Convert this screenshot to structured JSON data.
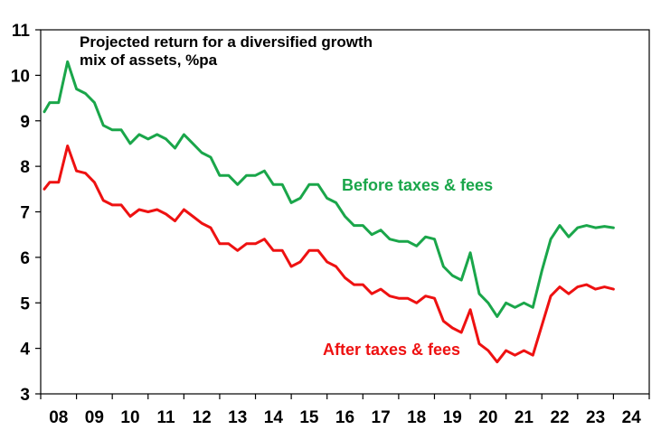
{
  "chart_data": {
    "type": "line",
    "title_lines": [
      "Projected return for a diversified growth",
      "mix of assets, %pa"
    ],
    "xlabel": "",
    "ylabel": "",
    "ylim": [
      3,
      11
    ],
    "xlim": [
      2008,
      2025
    ],
    "y_ticks": [
      "3",
      "4",
      "5",
      "6",
      "7",
      "8",
      "9",
      "10",
      "11"
    ],
    "x_tick_labels": [
      "08",
      "09",
      "10",
      "11",
      "12",
      "13",
      "14",
      "15",
      "16",
      "17",
      "18",
      "19",
      "20",
      "21",
      "22",
      "23",
      "24"
    ],
    "colors": {
      "before": "#1aa64a",
      "after": "#ee1111"
    },
    "series": [
      {
        "name": "Before taxes & fees",
        "key": "before",
        "x": [
          2008.1,
          2008.25,
          2008.5,
          2008.75,
          2009.0,
          2009.25,
          2009.5,
          2009.75,
          2010.0,
          2010.25,
          2010.5,
          2010.75,
          2011.0,
          2011.25,
          2011.5,
          2011.75,
          2012.0,
          2012.25,
          2012.5,
          2012.75,
          2013.0,
          2013.25,
          2013.5,
          2013.75,
          2014.0,
          2014.25,
          2014.5,
          2014.75,
          2015.0,
          2015.25,
          2015.5,
          2015.75,
          2016.0,
          2016.25,
          2016.5,
          2016.75,
          2017.0,
          2017.25,
          2017.5,
          2017.75,
          2018.0,
          2018.25,
          2018.5,
          2018.75,
          2019.0,
          2019.25,
          2019.5,
          2019.75,
          2020.0,
          2020.25,
          2020.5,
          2020.75,
          2021.0,
          2021.25,
          2021.5,
          2021.75,
          2022.0,
          2022.25,
          2022.5,
          2022.75,
          2023.0,
          2023.25,
          2023.5,
          2023.75,
          2024.0
        ],
        "values": [
          9.2,
          9.4,
          9.4,
          10.3,
          9.7,
          9.6,
          9.4,
          8.9,
          8.8,
          8.8,
          8.5,
          8.7,
          8.6,
          8.7,
          8.6,
          8.4,
          8.7,
          8.5,
          8.3,
          8.2,
          7.8,
          7.8,
          7.6,
          7.8,
          7.8,
          7.9,
          7.6,
          7.6,
          7.2,
          7.3,
          7.6,
          7.6,
          7.3,
          7.2,
          6.9,
          6.7,
          6.7,
          6.5,
          6.6,
          6.4,
          6.35,
          6.35,
          6.25,
          6.45,
          6.4,
          5.8,
          5.6,
          5.5,
          6.1,
          5.2,
          5.0,
          4.7,
          5.0,
          4.9,
          5.0,
          4.9,
          5.7,
          6.4,
          6.7,
          6.45,
          6.65,
          6.7,
          6.65,
          6.68,
          6.65
        ]
      },
      {
        "name": "After taxes & fees",
        "key": "after",
        "x": [
          2008.1,
          2008.25,
          2008.5,
          2008.75,
          2009.0,
          2009.25,
          2009.5,
          2009.75,
          2010.0,
          2010.25,
          2010.5,
          2010.75,
          2011.0,
          2011.25,
          2011.5,
          2011.75,
          2012.0,
          2012.25,
          2012.5,
          2012.75,
          2013.0,
          2013.25,
          2013.5,
          2013.75,
          2014.0,
          2014.25,
          2014.5,
          2014.75,
          2015.0,
          2015.25,
          2015.5,
          2015.75,
          2016.0,
          2016.25,
          2016.5,
          2016.75,
          2017.0,
          2017.25,
          2017.5,
          2017.75,
          2018.0,
          2018.25,
          2018.5,
          2018.75,
          2019.0,
          2019.25,
          2019.5,
          2019.75,
          2020.0,
          2020.25,
          2020.5,
          2020.75,
          2021.0,
          2021.25,
          2021.5,
          2021.75,
          2022.0,
          2022.25,
          2022.5,
          2022.75,
          2023.0,
          2023.25,
          2023.5,
          2023.75,
          2024.0
        ],
        "values": [
          7.5,
          7.65,
          7.65,
          8.45,
          7.9,
          7.85,
          7.65,
          7.25,
          7.15,
          7.15,
          6.9,
          7.05,
          7.0,
          7.05,
          6.95,
          6.8,
          7.05,
          6.9,
          6.75,
          6.65,
          6.3,
          6.3,
          6.15,
          6.3,
          6.3,
          6.4,
          6.15,
          6.15,
          5.8,
          5.9,
          6.15,
          6.15,
          5.9,
          5.8,
          5.55,
          5.4,
          5.4,
          5.2,
          5.3,
          5.15,
          5.1,
          5.1,
          5.0,
          5.15,
          5.1,
          4.6,
          4.45,
          4.35,
          4.85,
          4.1,
          3.95,
          3.7,
          3.95,
          3.85,
          3.95,
          3.85,
          4.5,
          5.15,
          5.35,
          5.2,
          5.35,
          5.4,
          5.3,
          5.35,
          5.3
        ]
      }
    ],
    "annotations": [
      {
        "text": "Before taxes & fees",
        "series": "before"
      },
      {
        "text": "After taxes & fees",
        "series": "after"
      }
    ]
  }
}
